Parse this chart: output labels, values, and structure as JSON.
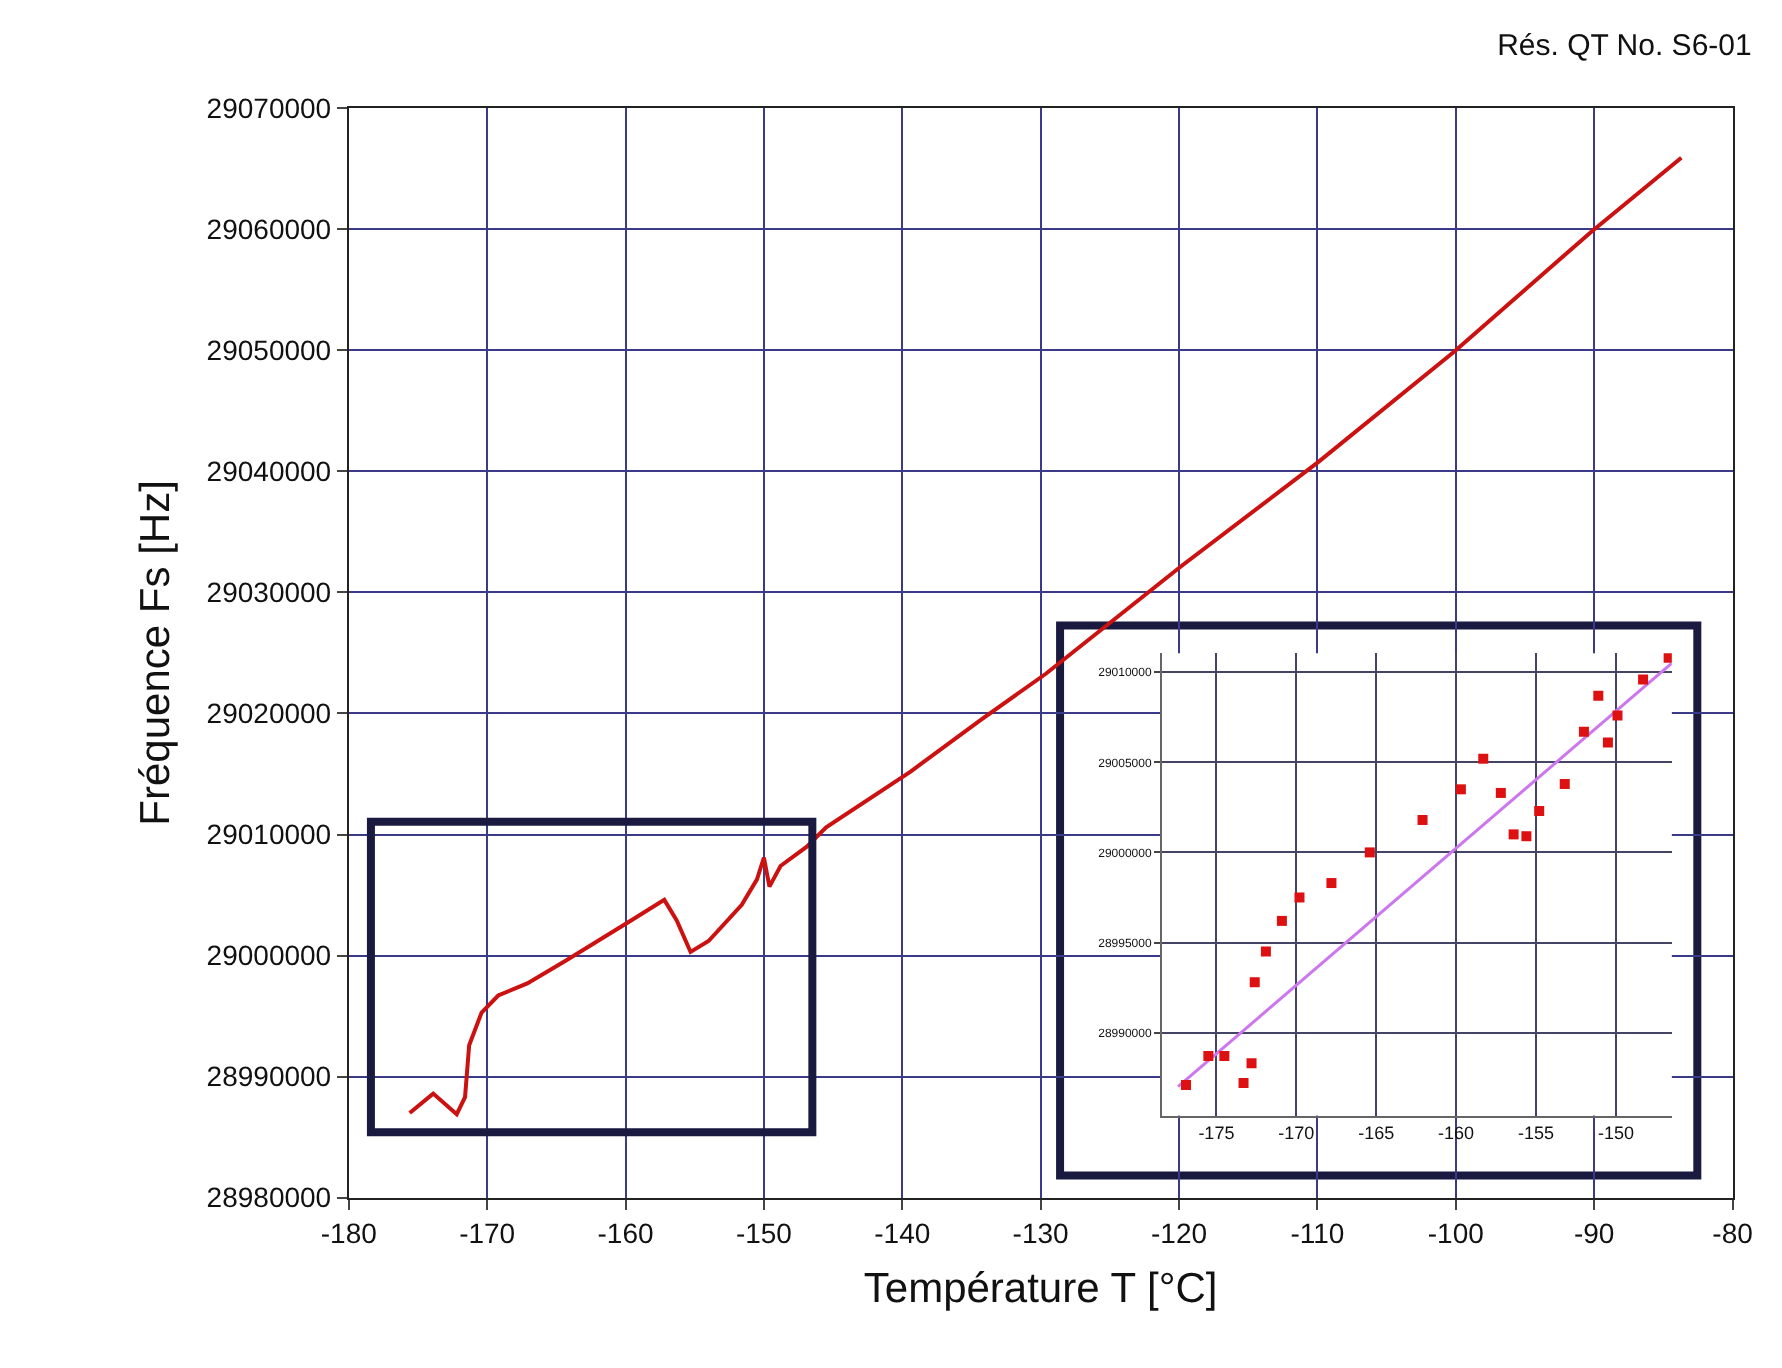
{
  "chart_data": [
    {
      "type": "line",
      "title": "Rés. QT No. S6-01",
      "xlabel": "Température T [°C]",
      "ylabel": "Fréquence Fs [Hz]",
      "color": "#cc1111",
      "grid": true,
      "x": [
        -175.6,
        -173.9,
        -172.2,
        -171.6,
        -171.3,
        -170.4,
        -169.2,
        -167.1,
        -164.3,
        -159.6,
        -157.2,
        -156.3,
        -155.3,
        -154.0,
        -151.6,
        -150.5,
        -150.0,
        -149.6,
        -148.8,
        -146.9,
        -145.5,
        -139.4,
        -134.3,
        -129.6,
        -119.8,
        -109.9,
        -100.1,
        -90.2,
        -83.7
      ],
      "values": [
        28987000,
        28988600,
        28986900,
        28988300,
        28992600,
        28995300,
        28996700,
        28997700,
        28999600,
        29002900,
        29004600,
        29002900,
        29000300,
        29001200,
        29004200,
        29006300,
        29008100,
        29005700,
        29007400,
        29009000,
        29010600,
        29015200,
        29019500,
        29023300,
        29032200,
        29040800,
        29049900,
        29059800,
        29065900
      ],
      "xlim": [
        -180,
        -80
      ],
      "xticks": [
        -180,
        -170,
        -160,
        -150,
        -140,
        -130,
        -120,
        -110,
        -100,
        -90,
        -80
      ],
      "ylim": [
        28980000,
        29070000
      ],
      "yticks": [
        28980000,
        28990000,
        29000000,
        29010000,
        29020000,
        29030000,
        29040000,
        29050000,
        29060000,
        29070000
      ]
    },
    {
      "type": "scatter",
      "marker": "square",
      "grid": true,
      "xlim": [
        -178.4,
        -146.5
      ],
      "xticks": [
        -175,
        -170,
        -165,
        -160,
        -155,
        -150
      ],
      "ylim": [
        28985400,
        29011050
      ],
      "yticks": [
        28990000,
        28995000,
        29000000,
        29005000,
        29010000
      ],
      "series": [
        {
          "color": "#dd1111",
          "x": [
            -176.9,
            -175.5,
            -174.5,
            -173.3,
            -172.8,
            -172.6,
            -171.9,
            -170.9,
            -169.8,
            -167.8,
            -165.4,
            -162.1,
            -159.7,
            -158.3,
            -157.2,
            -156.4,
            -155.6,
            -154.8,
            -153.2,
            -152.0,
            -151.1,
            -150.5,
            -149.9,
            -148.3,
            -146.7
          ],
          "values": [
            28987100,
            28988700,
            28988700,
            28987200,
            28988300,
            28992800,
            28994500,
            28996200,
            28997500,
            28998300,
            29000000,
            29001800,
            29003500,
            29005200,
            29003300,
            29001000,
            29000900,
            29002300,
            29003800,
            29006700,
            29008700,
            29006100,
            29007600,
            29009600,
            29010800
          ]
        },
        {
          "type": "line",
          "marker": "none",
          "color": "#cc77ee",
          "x": [
            -177.4,
            -146.5
          ],
          "values": [
            28987000,
            29010500
          ]
        }
      ]
    }
  ]
}
